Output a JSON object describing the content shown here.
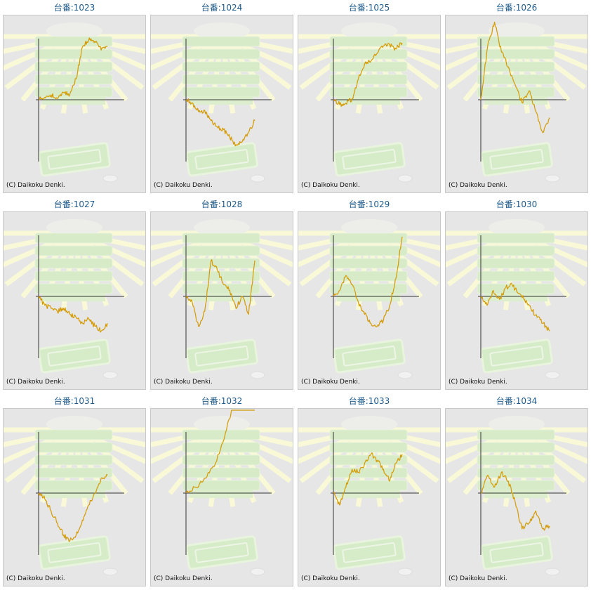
{
  "page": {
    "copyright": "(C) Daikoku Denki.",
    "line_color": "#d49a00",
    "axis_color": "#333333"
  },
  "machines": [
    {
      "label": "台番:1023",
      "series": [
        0,
        40,
        80,
        20,
        120,
        90,
        350,
        880,
        1000,
        980,
        830,
        900
      ]
    },
    {
      "label": "台番:1024",
      "series": [
        0,
        -50,
        -200,
        -180,
        -350,
        -450,
        -500,
        -630,
        -750,
        -700,
        -550,
        -350
      ]
    },
    {
      "label": "台番:1025",
      "series": [
        0,
        -80,
        -60,
        20,
        350,
        600,
        650,
        780,
        900,
        920,
        850,
        950
      ]
    },
    {
      "label": "台番:1026",
      "series": [
        0,
        900,
        1300,
        800,
        550,
        250,
        -50,
        150,
        -200,
        -550,
        -300
      ]
    },
    {
      "label": "台番:1027",
      "series": [
        0,
        -150,
        -200,
        -250,
        -200,
        -300,
        -350,
        -450,
        -380,
        -500,
        -580,
        -450
      ]
    },
    {
      "label": "台番:1028",
      "series": [
        0,
        -100,
        -500,
        -250,
        600,
        450,
        200,
        100,
        -200,
        0,
        -300,
        600
      ]
    },
    {
      "label": "台番:1029",
      "series": [
        0,
        100,
        350,
        200,
        -100,
        -300,
        -450,
        -500,
        -400,
        -150,
        300,
        1000
      ]
    },
    {
      "label": "台番:1030",
      "series": [
        0,
        -150,
        100,
        -50,
        150,
        200,
        50,
        -50,
        -200,
        -350,
        -450,
        -580
      ]
    },
    {
      "label": "台番:1031",
      "series": [
        0,
        -100,
        -300,
        -500,
        -700,
        -800,
        -700,
        -450,
        -200,
        0,
        250,
        300
      ]
    },
    {
      "label": "台番:1032",
      "series": [
        0,
        100,
        250,
        500,
        1000,
        1600,
        2000,
        2400
      ]
    },
    {
      "label": "台番:1033",
      "series": [
        0,
        -200,
        100,
        400,
        350,
        500,
        650,
        550,
        400,
        200,
        500,
        650
      ]
    },
    {
      "label": "台番:1034",
      "series": [
        0,
        300,
        100,
        350,
        200,
        -150,
        -600,
        -500,
        -300,
        -600,
        -550
      ]
    }
  ],
  "layout": {
    "columns": 4
  }
}
